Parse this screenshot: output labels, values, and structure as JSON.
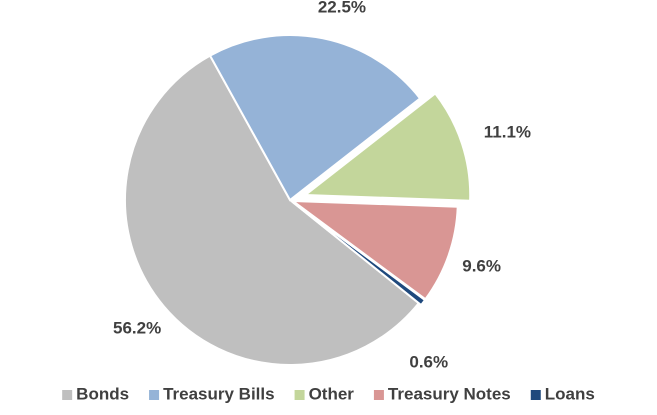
{
  "chart_data": {
    "type": "pie",
    "categories": [
      "Bonds",
      "Treasury Bills",
      "Other",
      "Treasury Notes",
      "Loans"
    ],
    "values": [
      56.2,
      22.5,
      11.1,
      9.6,
      0.6
    ],
    "value_labels": [
      "56.2%",
      "22.5%",
      "11.1%",
      "9.6%",
      "0.6%"
    ],
    "colors": [
      "#bfbfbf",
      "#95b3d7",
      "#c3d69b",
      "#d99694",
      "#1f497d"
    ],
    "legend": "bottom"
  }
}
